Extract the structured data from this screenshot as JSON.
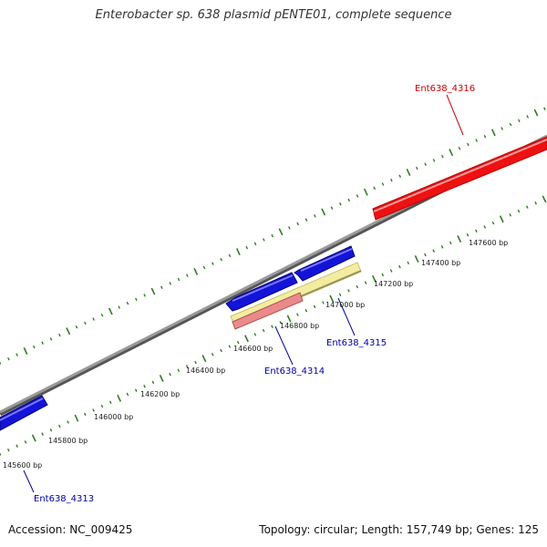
{
  "title": "Enterobacter sp. 638 plasmid pENTE01, complete sequence",
  "footer": {
    "accession": "Accession: NC_009425",
    "summary": "Topology: circular; Length: 157,749 bp; Genes: 125"
  },
  "colors": {
    "backbone": "#888888",
    "ticks": "#2e7d22",
    "gene_blue": "#1414d8",
    "gene_red": "#ee1111",
    "gene_yellow": "#f3eda2",
    "gene_pink": "#ea8a8a",
    "label_blue": "#0000a0",
    "label_red": "#cc0000"
  },
  "scale_labels": [
    {
      "bp": 145600,
      "text": "145600 bp"
    },
    {
      "bp": 145800,
      "text": "145800 bp"
    },
    {
      "bp": 146000,
      "text": "146000 bp"
    },
    {
      "bp": 146200,
      "text": "146200 bp"
    },
    {
      "bp": 146400,
      "text": "146400 bp"
    },
    {
      "bp": 146600,
      "text": "146600 bp"
    },
    {
      "bp": 146800,
      "text": "146800 bp"
    },
    {
      "bp": 147000,
      "text": "147000 bp"
    },
    {
      "bp": 147200,
      "text": "147200 bp"
    },
    {
      "bp": 147400,
      "text": "147400 bp"
    },
    {
      "bp": 147600,
      "text": "147600 bp"
    }
  ],
  "genes": [
    {
      "name": "Ent638_4313",
      "color": "blue"
    },
    {
      "name": "Ent638_4314",
      "color": "blue"
    },
    {
      "name": "Ent638_4315",
      "color": "blue"
    },
    {
      "name": "Ent638_4316",
      "color": "red"
    }
  ]
}
